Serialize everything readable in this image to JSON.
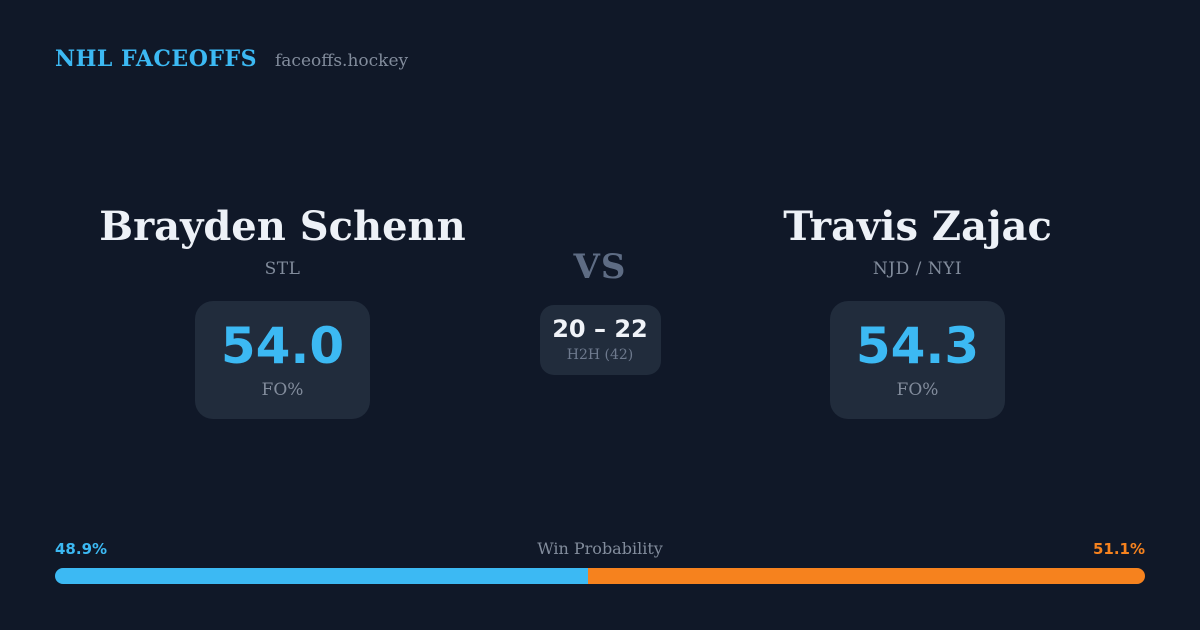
{
  "header": {
    "brand": "NHL FACEOFFS",
    "site": "faceoffs.hockey"
  },
  "matchup": {
    "player_left": {
      "name": "Brayden Schenn",
      "team": "STL",
      "fo_value": "54.0",
      "fo_label": "FO%"
    },
    "player_right": {
      "name": "Travis Zajac",
      "team": "NJD / NYI",
      "fo_value": "54.3",
      "fo_label": "FO%"
    },
    "vs_label": "VS",
    "h2h": {
      "score": "20 – 22",
      "label": "H2H (42)"
    }
  },
  "win_probability": {
    "title": "Win Probability",
    "left_pct_label": "48.9%",
    "right_pct_label": "51.1%",
    "left_value": 48.9,
    "right_value": 51.1
  },
  "colors": {
    "background": "#101828",
    "card": "#212c3c",
    "accent_blue": "#3cb9f3",
    "accent_orange": "#f6821e",
    "muted_gray": "#828c9c"
  }
}
